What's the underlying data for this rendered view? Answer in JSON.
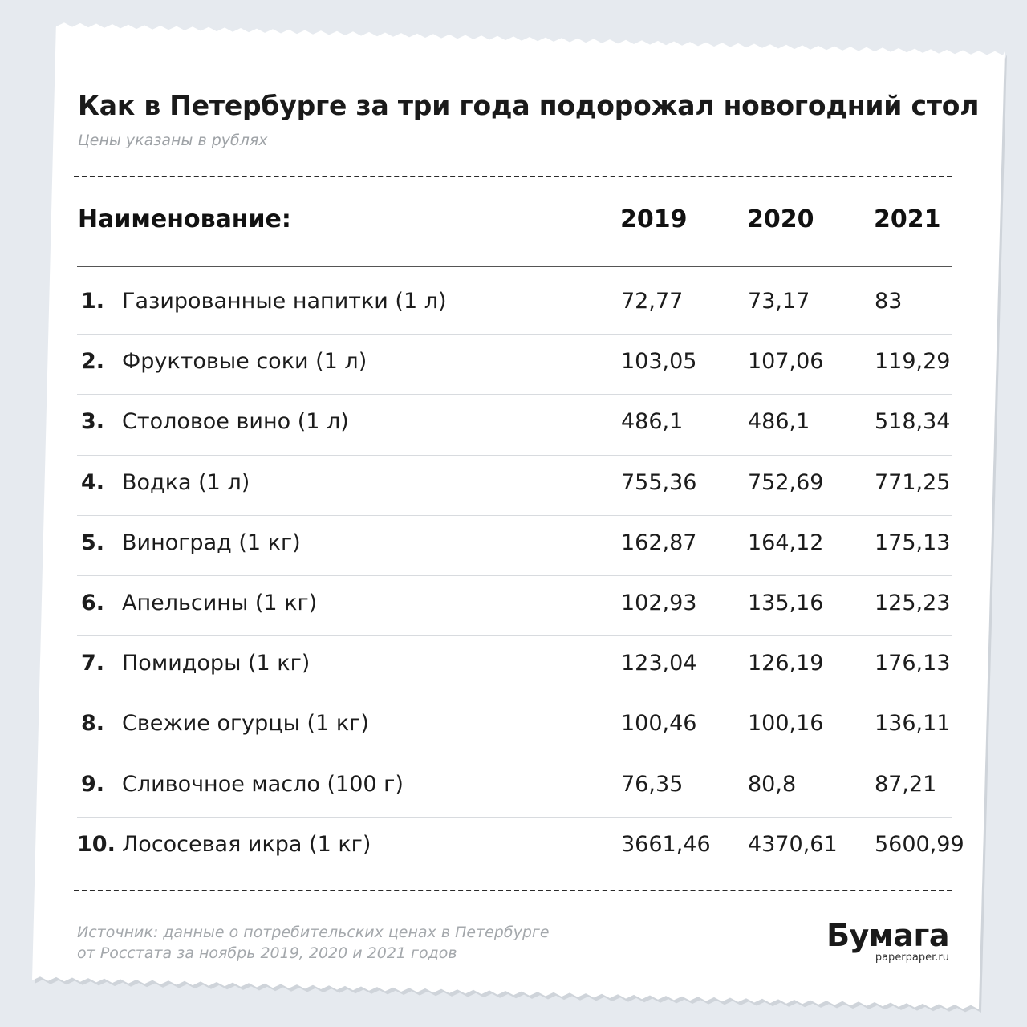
{
  "title": "Как в Петербурге за три года подорожал новогодний стол",
  "subtitle": "Цены указаны в рублях",
  "header": {
    "name": "Наименование:",
    "years": [
      "2019",
      "2020",
      "2021"
    ]
  },
  "rows": [
    {
      "num": "1.",
      "name": "Газированные напитки (1 л)",
      "values": [
        "72,77",
        "73,17",
        "83"
      ]
    },
    {
      "num": "2.",
      "name": "Фруктовые соки (1 л)",
      "values": [
        "103,05",
        "107,06",
        "119,29"
      ]
    },
    {
      "num": "3.",
      "name": "Столовое вино (1 л)",
      "values": [
        "486,1",
        "486,1",
        "518,34"
      ]
    },
    {
      "num": "4.",
      "name": "Водка (1 л)",
      "values": [
        "755,36",
        "752,69",
        "771,25"
      ]
    },
    {
      "num": "5.",
      "name": "Виноград (1 кг)",
      "values": [
        "162,87",
        "164,12",
        "175,13"
      ]
    },
    {
      "num": "6.",
      "name": "Апельсины (1 кг)",
      "values": [
        "102,93",
        "135,16",
        "125,23"
      ]
    },
    {
      "num": "7.",
      "name": "Помидоры (1 кг)",
      "values": [
        "123,04",
        "126,19",
        "176,13"
      ]
    },
    {
      "num": "8.",
      "name": "Свежие огурцы (1 кг)",
      "values": [
        "100,46",
        "100,16",
        "136,11"
      ]
    },
    {
      "num": "9.",
      "name": "Сливочное масло (100 г)",
      "values": [
        "76,35",
        "80,8",
        "87,21"
      ]
    },
    {
      "num": "10.",
      "name": "Лососевая икра (1 кг)",
      "values": [
        "3661,46",
        "4370,61",
        "5600,99"
      ]
    }
  ],
  "source": {
    "line1": "Источник: данные о потребительских ценах в Петербурге",
    "line2": "от Росстата за ноябрь 2019, 2020 и 2021 годов"
  },
  "logo": {
    "main": "Бумага",
    "sub": "paperpaper.ru"
  },
  "chart_data": {
    "type": "table",
    "title": "Как в Петербурге за три года подорожал новогодний стол",
    "subtitle": "Цены указаны в рублях",
    "columns": [
      "Наименование:",
      "2019",
      "2020",
      "2021"
    ],
    "categories": [
      "Газированные напитки (1 л)",
      "Фруктовые соки (1 л)",
      "Столовое вино (1 л)",
      "Водка (1 л)",
      "Виноград (1 кг)",
      "Апельсины (1 кг)",
      "Помидоры (1 кг)",
      "Свежие огурцы (1 кг)",
      "Сливочное масло (100 г)",
      "Лососевая икра (1 кг)"
    ],
    "series": [
      {
        "name": "2019",
        "values": [
          72.77,
          103.05,
          486.1,
          755.36,
          162.87,
          102.93,
          123.04,
          100.46,
          76.35,
          3661.46
        ]
      },
      {
        "name": "2020",
        "values": [
          73.17,
          107.06,
          486.1,
          752.69,
          164.12,
          135.16,
          126.19,
          100.16,
          80.8,
          4370.61
        ]
      },
      {
        "name": "2021",
        "values": [
          83,
          119.29,
          518.34,
          771.25,
          175.13,
          125.23,
          176.13,
          136.11,
          87.21,
          5600.99
        ]
      }
    ]
  }
}
